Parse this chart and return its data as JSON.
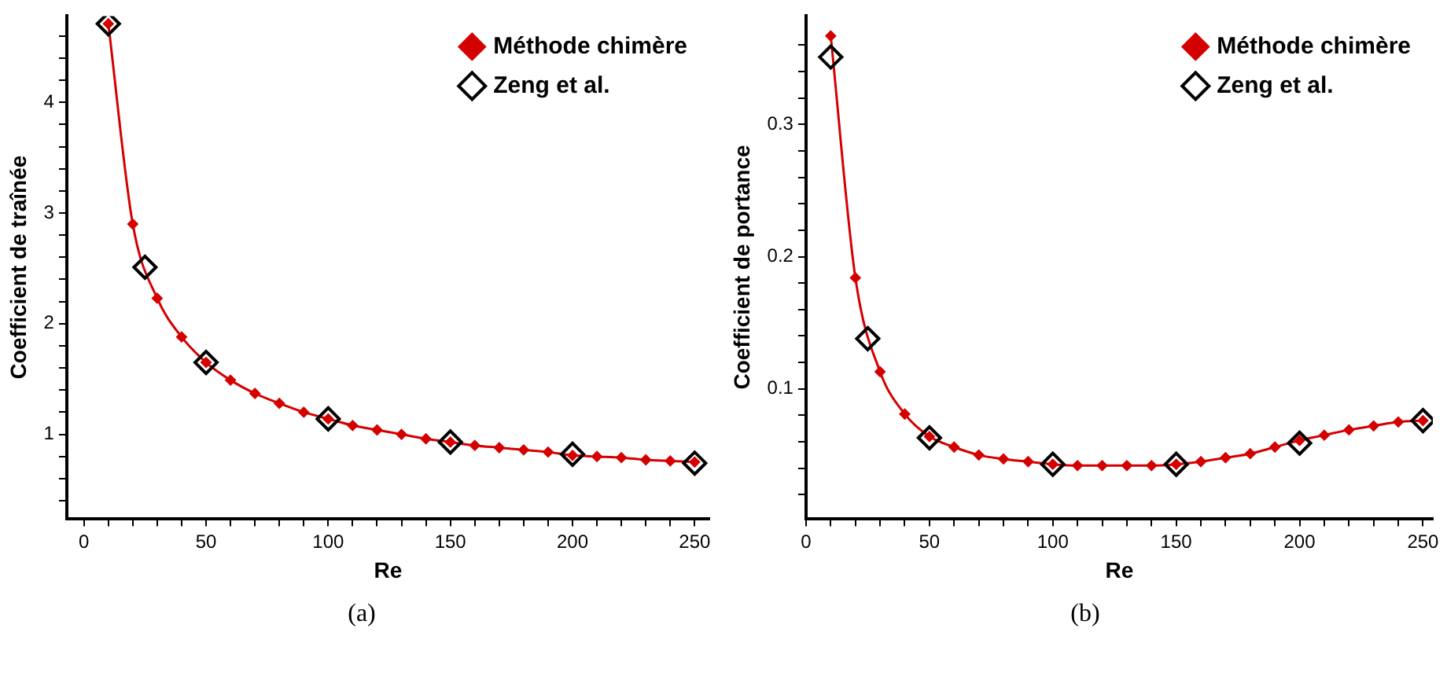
{
  "chart_data": [
    {
      "type": "line",
      "xlabel": "Re",
      "ylabel": "Coefficient de traînée",
      "annotations": [
        "(a)"
      ],
      "legend": "top right",
      "grid": false,
      "xlim": [
        -7,
        256
      ],
      "ylim": [
        0.24,
        4.78
      ],
      "xticks": [
        0,
        {
          "value": 10,
          "label": null
        },
        {
          "value": 20,
          "label": null
        },
        {
          "value": 30,
          "label": null
        },
        {
          "value": 40,
          "label": null
        },
        50,
        {
          "value": 60,
          "label": null
        },
        {
          "value": 70,
          "label": null
        },
        {
          "value": 80,
          "label": null
        },
        {
          "value": 90,
          "label": null
        },
        100,
        {
          "value": 110,
          "label": null
        },
        {
          "value": 120,
          "label": null
        },
        {
          "value": 130,
          "label": null
        },
        {
          "value": 140,
          "label": null
        },
        150,
        {
          "value": 160,
          "label": null
        },
        {
          "value": 170,
          "label": null
        },
        {
          "value": 180,
          "label": null
        },
        {
          "value": 190,
          "label": null
        },
        200,
        {
          "value": 210,
          "label": null
        },
        {
          "value": 220,
          "label": null
        },
        {
          "value": 230,
          "label": null
        },
        {
          "value": 240,
          "label": null
        },
        250
      ],
      "yticks": [
        {
          "value": 0.4,
          "label": null
        },
        {
          "value": 0.6,
          "label": null
        },
        {
          "value": 0.8,
          "label": null
        },
        1,
        {
          "value": 1.2,
          "label": null
        },
        {
          "value": 1.4,
          "label": null
        },
        {
          "value": 1.6,
          "label": null
        },
        {
          "value": 1.8,
          "label": null
        },
        2,
        {
          "value": 2.2,
          "label": null
        },
        {
          "value": 2.4,
          "label": null
        },
        {
          "value": 2.6,
          "label": null
        },
        {
          "value": 2.8,
          "label": null
        },
        3,
        {
          "value": 3.2,
          "label": null
        },
        {
          "value": 3.4,
          "label": null
        },
        {
          "value": 3.6,
          "label": null
        },
        {
          "value": 3.8,
          "label": null
        },
        4,
        {
          "value": 4.2,
          "label": null
        },
        {
          "value": 4.4,
          "label": null
        },
        {
          "value": 4.6,
          "label": null
        }
      ],
      "series": [
        {
          "name": "Méthode chimère",
          "type": "line",
          "color": "#d40000",
          "marker": "diamond",
          "x": [
            10,
            20,
            30,
            40,
            50,
            60,
            70,
            80,
            90,
            100,
            110,
            120,
            130,
            140,
            150,
            160,
            170,
            180,
            190,
            200,
            210,
            220,
            230,
            240,
            250
          ],
          "values": [
            4.71,
            2.9,
            2.23,
            1.88,
            1.65,
            1.49,
            1.37,
            1.28,
            1.2,
            1.14,
            1.08,
            1.04,
            1.0,
            0.96,
            0.93,
            0.9,
            0.88,
            0.86,
            0.84,
            0.81,
            0.8,
            0.79,
            0.77,
            0.76,
            0.75
          ]
        },
        {
          "name": "Zeng et al.",
          "type": "scatter",
          "color": "#000000",
          "marker": "diamond",
          "x": [
            10,
            25,
            50,
            100,
            150,
            200,
            250
          ],
          "values": [
            4.71,
            2.51,
            1.65,
            1.14,
            0.93,
            0.82,
            0.74
          ]
        }
      ]
    },
    {
      "type": "line",
      "xlabel": "Re",
      "ylabel": "Coefficient de portance",
      "annotations": [
        "(b)"
      ],
      "legend": "top right",
      "grid": false,
      "xlim": [
        0,
        254
      ],
      "ylim": [
        0.002,
        0.382
      ],
      "xticks": [
        0,
        {
          "value": 10,
          "label": null
        },
        {
          "value": 20,
          "label": null
        },
        {
          "value": 30,
          "label": null
        },
        {
          "value": 40,
          "label": null
        },
        50,
        {
          "value": 60,
          "label": null
        },
        {
          "value": 70,
          "label": null
        },
        {
          "value": 80,
          "label": null
        },
        {
          "value": 90,
          "label": null
        },
        100,
        {
          "value": 110,
          "label": null
        },
        {
          "value": 120,
          "label": null
        },
        {
          "value": 130,
          "label": null
        },
        {
          "value": 140,
          "label": null
        },
        150,
        {
          "value": 160,
          "label": null
        },
        {
          "value": 170,
          "label": null
        },
        {
          "value": 180,
          "label": null
        },
        {
          "value": 190,
          "label": null
        },
        200,
        {
          "value": 210,
          "label": null
        },
        {
          "value": 220,
          "label": null
        },
        {
          "value": 230,
          "label": null
        },
        {
          "value": 240,
          "label": null
        },
        250
      ],
      "yticks": [
        {
          "value": 0.02,
          "label": null
        },
        {
          "value": 0.04,
          "label": null
        },
        {
          "value": 0.06,
          "label": null
        },
        {
          "value": 0.08,
          "label": null
        },
        0.1,
        {
          "value": 0.12,
          "label": null
        },
        {
          "value": 0.14,
          "label": null
        },
        {
          "value": 0.16,
          "label": null
        },
        {
          "value": 0.18,
          "label": null
        },
        0.2,
        {
          "value": 0.22,
          "label": null
        },
        {
          "value": 0.24,
          "label": null
        },
        {
          "value": 0.26,
          "label": null
        },
        {
          "value": 0.28,
          "label": null
        },
        0.3,
        {
          "value": 0.32,
          "label": null
        },
        {
          "value": 0.34,
          "label": null
        },
        {
          "value": 0.36,
          "label": null
        }
      ],
      "series": [
        {
          "name": "Méthode chimère",
          "type": "line",
          "color": "#d40000",
          "marker": "diamond",
          "x": [
            10,
            20,
            30,
            40,
            50,
            60,
            70,
            80,
            90,
            100,
            110,
            120,
            130,
            140,
            150,
            160,
            170,
            180,
            190,
            200,
            210,
            220,
            230,
            240,
            250
          ],
          "values": [
            0.367,
            0.184,
            0.113,
            0.081,
            0.064,
            0.056,
            0.05,
            0.047,
            0.045,
            0.043,
            0.042,
            0.042,
            0.042,
            0.042,
            0.043,
            0.045,
            0.048,
            0.051,
            0.056,
            0.061,
            0.065,
            0.069,
            0.072,
            0.075,
            0.076
          ]
        },
        {
          "name": "Zeng et al.",
          "type": "scatter",
          "color": "#000000",
          "marker": "diamond",
          "x": [
            10,
            25,
            50,
            100,
            150,
            200,
            250
          ],
          "values": [
            0.351,
            0.138,
            0.063,
            0.043,
            0.043,
            0.059,
            0.076
          ]
        }
      ]
    }
  ]
}
